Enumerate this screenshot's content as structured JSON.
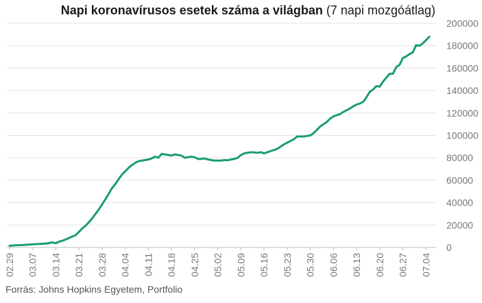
{
  "chart_data": {
    "type": "line",
    "title": "Napi koronavírusos esetek száma a világban",
    "subtitle": "(7 napi mozgóátlag)",
    "source": "Forrás: Johns Hopkins Egyetem, Portfolio",
    "x_start": "02.29",
    "x_tick_labels": [
      "02.29",
      "03.07",
      "03.14",
      "03.21",
      "03.28",
      "04.04",
      "04.11",
      "04.18",
      "04.25",
      "05.02",
      "05.09",
      "05.16",
      "05.23",
      "05.30",
      "06.06",
      "06.13",
      "06.20",
      "06.27",
      "07.04"
    ],
    "y_tick_labels": [
      "0",
      "20000",
      "40000",
      "60000",
      "80000",
      "100000",
      "120000",
      "140000",
      "160000",
      "180000",
      "200000"
    ],
    "ylim": [
      0,
      200000
    ],
    "grid": true,
    "line_color": "#1a9c74",
    "series": [
      {
        "values": [
          1500,
          1800,
          2000,
          2100,
          2200,
          2400,
          2600,
          2800,
          3000,
          3100,
          3300,
          3500,
          4000,
          4500,
          3800,
          5200,
          6000,
          7200,
          8500,
          9800,
          11000,
          14000,
          17000,
          19500,
          22500,
          26000,
          30000,
          34000,
          38500,
          43000,
          48000,
          53000,
          56500,
          61000,
          65000,
          68000,
          71000,
          73500,
          75500,
          77000,
          77500,
          78000,
          78500,
          79500,
          81000,
          80000,
          83500,
          83000,
          82500,
          82000,
          83000,
          82500,
          82000,
          80000,
          80500,
          81000,
          80500,
          79000,
          79000,
          79500,
          78500,
          78000,
          77500,
          77500,
          77500,
          78000,
          77800,
          78500,
          79000,
          80000,
          82500,
          84000,
          84500,
          85000,
          84800,
          84500,
          85000,
          84000,
          85000,
          86000,
          87000,
          88000,
          90000,
          92000,
          93500,
          95000,
          96500,
          99000,
          99000,
          99000,
          99500,
          100000,
          102000,
          105000,
          108000,
          110000,
          112000,
          115000,
          117000,
          118000,
          119000,
          121000,
          122500,
          124000,
          126000,
          127500,
          128500,
          130000,
          134000,
          139000,
          141000,
          144000,
          143500,
          148000,
          151500,
          155000,
          155000,
          161000,
          163000,
          169000,
          170500,
          172500,
          174000,
          180500,
          180000,
          182000,
          185000,
          188000
        ]
      }
    ]
  }
}
